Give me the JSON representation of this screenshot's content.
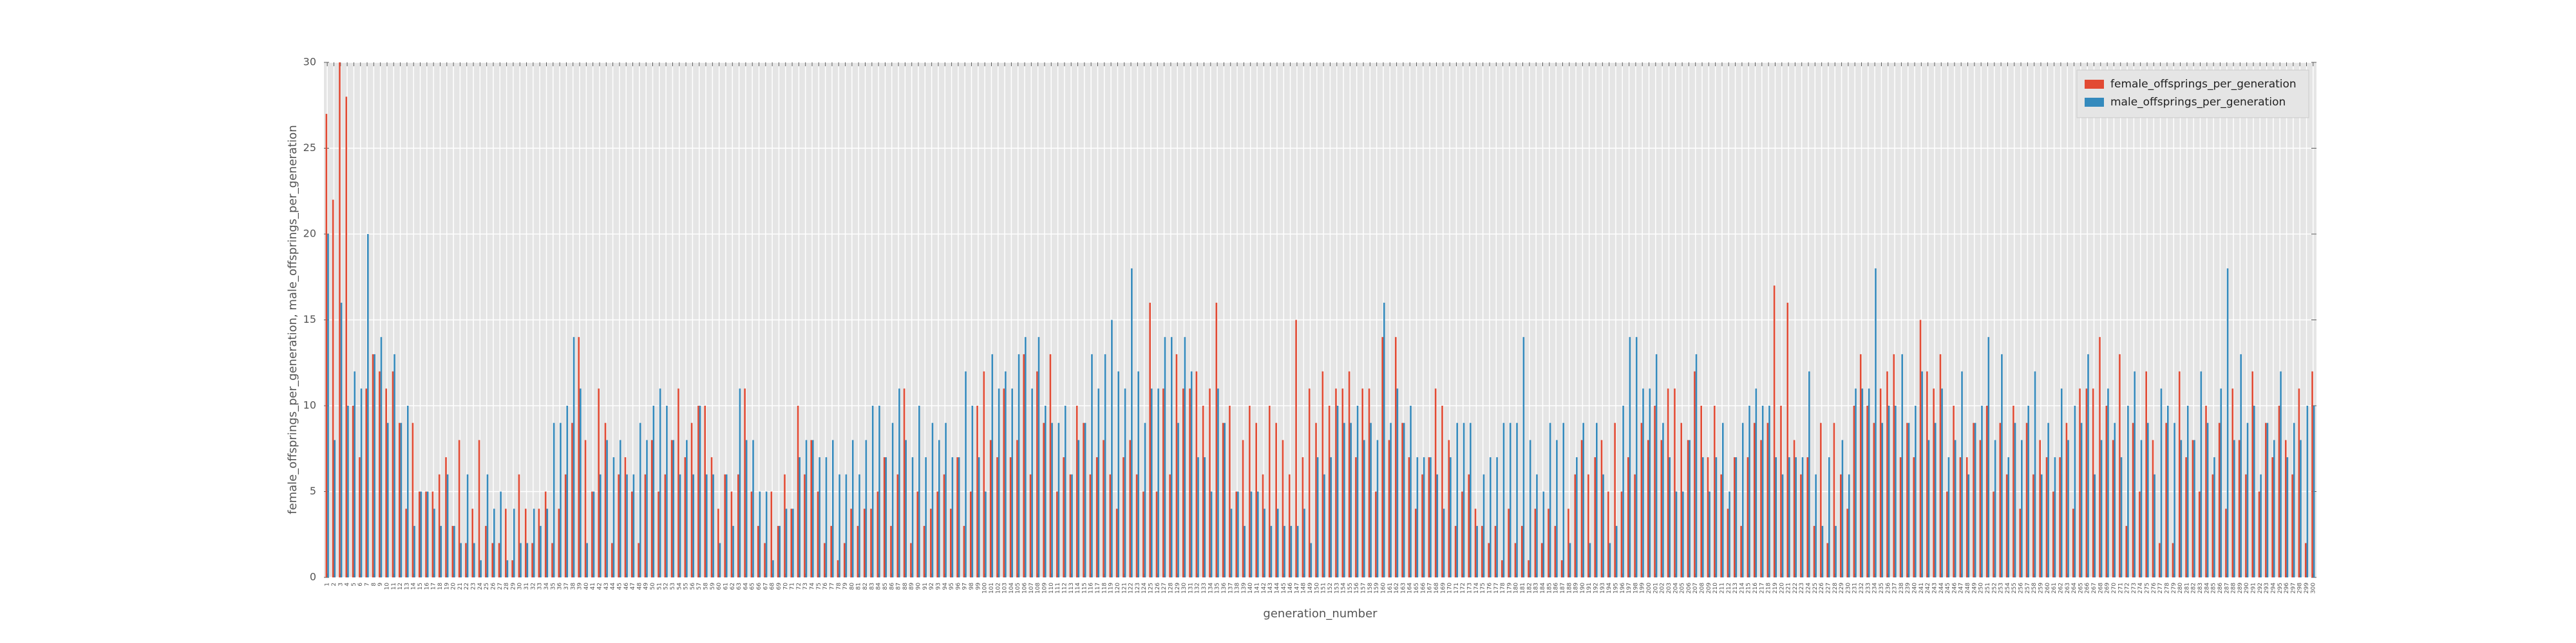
{
  "chart_data": {
    "type": "bar",
    "xlabel": "generation_number",
    "ylabel": "female_offsprings_per_generation, male_offsprings_per_generation",
    "categories": [
      1,
      2,
      3,
      4,
      5,
      6,
      7,
      8,
      9,
      10,
      11,
      12,
      13,
      14,
      15,
      16,
      17,
      18,
      19,
      20,
      21,
      22,
      23,
      24,
      25,
      26,
      27,
      28,
      29,
      30,
      31,
      32,
      33,
      34,
      35,
      36,
      37,
      38,
      39,
      40,
      41,
      42,
      43,
      44,
      45,
      46,
      47,
      48,
      49,
      50,
      51,
      52,
      53,
      54,
      55,
      56,
      57,
      58,
      59,
      60,
      61,
      62,
      63,
      64,
      65,
      66,
      67,
      68,
      69,
      70,
      71,
      72,
      73,
      74,
      75,
      76,
      77,
      78,
      79,
      80,
      81,
      82,
      83,
      84,
      85,
      86,
      87,
      88,
      89,
      90,
      91,
      92,
      93,
      94,
      95,
      96,
      97,
      98,
      99,
      100,
      101,
      102,
      103,
      104,
      105,
      106,
      107,
      108,
      109,
      110,
      111,
      112,
      113,
      114,
      115,
      116,
      117,
      118,
      119,
      120,
      121,
      122,
      123,
      124,
      125,
      126,
      127,
      128,
      129,
      130,
      131,
      132,
      133,
      134,
      135,
      136,
      137,
      138,
      139,
      140,
      141,
      142,
      143,
      144,
      145,
      146,
      147,
      148,
      149,
      150,
      151,
      152,
      153,
      154,
      155,
      156,
      157,
      158,
      159,
      160,
      161,
      162,
      163,
      164,
      165,
      166,
      167,
      168,
      169,
      170,
      171,
      172,
      173,
      174,
      175,
      176,
      177,
      178,
      179,
      180,
      181,
      182,
      183,
      184,
      185,
      186,
      187,
      188,
      189,
      190,
      191,
      192,
      193,
      194,
      195,
      196,
      197,
      198,
      199,
      200,
      201,
      202,
      203,
      204,
      205,
      206,
      207,
      208,
      209,
      210,
      211,
      212,
      213,
      214,
      215,
      216,
      217,
      218,
      219,
      220,
      221,
      222,
      223,
      224,
      225,
      226,
      227,
      228,
      229,
      230,
      231,
      232,
      233,
      234,
      235,
      236,
      237,
      238,
      239,
      240,
      241,
      242,
      243,
      244,
      245,
      246,
      247,
      248,
      249,
      250,
      251,
      252,
      253,
      254,
      255,
      256,
      257,
      258,
      259,
      260,
      261,
      262,
      263,
      264,
      265,
      266,
      267,
      268,
      269,
      270,
      271,
      272,
      273,
      274,
      275,
      276,
      277,
      278,
      279,
      280,
      281,
      282,
      283,
      284,
      285,
      286,
      287,
      288,
      289,
      290,
      291,
      292,
      293,
      294,
      295,
      296,
      297,
      298,
      299,
      300
    ],
    "series": [
      {
        "name": "female_offsprings_per_generation",
        "color": "#e24a33",
        "values": [
          27,
          22,
          30,
          28,
          10,
          7,
          11,
          13,
          12,
          11,
          12,
          9,
          4,
          9,
          5,
          5,
          5,
          6,
          7,
          3,
          8,
          2,
          4,
          8,
          3,
          2,
          2,
          4,
          1,
          6,
          4,
          2,
          4,
          5,
          2,
          4,
          6,
          9,
          14,
          8,
          5,
          11,
          9,
          2,
          6,
          7,
          5,
          2,
          6,
          8,
          5,
          6,
          8,
          11,
          7,
          9,
          10,
          10,
          7,
          4,
          6,
          5,
          6,
          11,
          5,
          3,
          2,
          5,
          3,
          6,
          4,
          10,
          6,
          8,
          5,
          2,
          3,
          1,
          2,
          4,
          3,
          4,
          4,
          5,
          7,
          3,
          6,
          11,
          2,
          5,
          3,
          4,
          5,
          6,
          4,
          7,
          3,
          5,
          10,
          12,
          8,
          7,
          11,
          7,
          8,
          13,
          6,
          12,
          9,
          13,
          5,
          7,
          6,
          10,
          9,
          6,
          7,
          8,
          6,
          4,
          7,
          8,
          6,
          5,
          16,
          5,
          11,
          6,
          13,
          11,
          11,
          12,
          10,
          11,
          16,
          9,
          10,
          5,
          8,
          10,
          9,
          6,
          10,
          9,
          8,
          6,
          15,
          7,
          11,
          9,
          12,
          10,
          11,
          11,
          12,
          7,
          11,
          11,
          5,
          14,
          8,
          14,
          9,
          7,
          4,
          6,
          7,
          11,
          10,
          8,
          3,
          5,
          6,
          4,
          3,
          2,
          3,
          1,
          4,
          2,
          3,
          1,
          4,
          2,
          4,
          3,
          1,
          4,
          6,
          8,
          6,
          7,
          8,
          5,
          9,
          5,
          7,
          6,
          9,
          8,
          10,
          8,
          11,
          11,
          9,
          8,
          12,
          10,
          7,
          10,
          6,
          4,
          7,
          3,
          7,
          9,
          8,
          9,
          17,
          10,
          16,
          8,
          6,
          7,
          3,
          9,
          2,
          9,
          6,
          4,
          10,
          13,
          10,
          9,
          11,
          12,
          13,
          7,
          9,
          7,
          15,
          12,
          11,
          13,
          5,
          10,
          7,
          7,
          9,
          8,
          10,
          5,
          9,
          6,
          10,
          4,
          9,
          6,
          8,
          7,
          5,
          7,
          9,
          4,
          11,
          11,
          11,
          14,
          10,
          8,
          13,
          3,
          9,
          5,
          12,
          8,
          2,
          9,
          2,
          12,
          7,
          8,
          5,
          10,
          6,
          9,
          4,
          11,
          8,
          6,
          12,
          5,
          9,
          7,
          10,
          8,
          6,
          11,
          2,
          12
        ]
      },
      {
        "name": "male_offsprings_per_generation",
        "color": "#348abd",
        "values": [
          20,
          8,
          16,
          10,
          12,
          11,
          20,
          13,
          14,
          9,
          13,
          9,
          10,
          3,
          5,
          5,
          4,
          3,
          6,
          3,
          2,
          6,
          2,
          1,
          6,
          4,
          5,
          1,
          4,
          2,
          2,
          4,
          3,
          4,
          9,
          9,
          10,
          14,
          11,
          2,
          5,
          6,
          8,
          7,
          8,
          6,
          6,
          9,
          8,
          10,
          11,
          10,
          8,
          6,
          8,
          6,
          10,
          6,
          6,
          2,
          6,
          3,
          11,
          8,
          8,
          5,
          5,
          1,
          3,
          4,
          4,
          7,
          8,
          8,
          7,
          7,
          8,
          6,
          6,
          8,
          6,
          8,
          10,
          10,
          7,
          9,
          11,
          8,
          7,
          10,
          7,
          9,
          8,
          9,
          7,
          7,
          12,
          10,
          7,
          5,
          13,
          11,
          12,
          11,
          13,
          14,
          11,
          14,
          10,
          9,
          9,
          10,
          6,
          8,
          9,
          13,
          11,
          13,
          15,
          12,
          11,
          18,
          12,
          9,
          11,
          11,
          14,
          14,
          9,
          14,
          12,
          7,
          7,
          5,
          11,
          9,
          4,
          5,
          3,
          5,
          5,
          4,
          3,
          4,
          3,
          3,
          3,
          4,
          2,
          7,
          6,
          7,
          10,
          9,
          9,
          10,
          8,
          9,
          8,
          16,
          9,
          11,
          9,
          10,
          7,
          7,
          7,
          6,
          4,
          7,
          9,
          9,
          9,
          3,
          6,
          7,
          7,
          9,
          9,
          9,
          14,
          8,
          6,
          5,
          9,
          8,
          9,
          2,
          7,
          9,
          2,
          9,
          6,
          2,
          3,
          10,
          14,
          14,
          11,
          11,
          13,
          9,
          7,
          5,
          5,
          8,
          13,
          7,
          5,
          7,
          9,
          5,
          7,
          9,
          10,
          11,
          10,
          10,
          7,
          6,
          7,
          7,
          7,
          12,
          6,
          3,
          7,
          3,
          8,
          6,
          11,
          11,
          11,
          18,
          9,
          10,
          10,
          13,
          9,
          10,
          12,
          8,
          9,
          11,
          7,
          8,
          12,
          6,
          9,
          10,
          14,
          8,
          13,
          7,
          9,
          8,
          10,
          12,
          6,
          9,
          7,
          11,
          8,
          10,
          9,
          13,
          6,
          8,
          11,
          9,
          7,
          10,
          12,
          8,
          9,
          6,
          11,
          10,
          9,
          8,
          10,
          8,
          12,
          9,
          7,
          11,
          18,
          8,
          13,
          9,
          10,
          6,
          9,
          8,
          12,
          7,
          9,
          8,
          10,
          10
        ]
      }
    ],
    "ylim": [
      0,
      30
    ],
    "yticks": [
      0,
      5,
      10,
      15,
      20,
      25,
      30
    ],
    "grid": true,
    "legend": "upper right"
  }
}
